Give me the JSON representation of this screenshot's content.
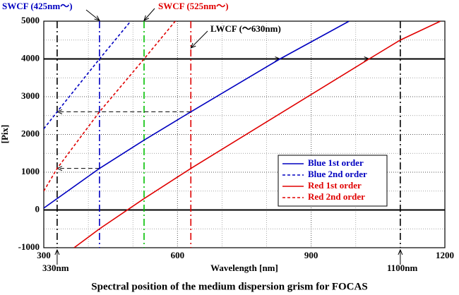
{
  "chart_data": {
    "type": "line",
    "title": "Spectral position of the medium dispersion grism for FOCAS",
    "x_label": "Wavelength [nm]",
    "y_label": "[Pix]",
    "xlim": [
      300,
      1200
    ],
    "ylim": [
      -1000,
      5000
    ],
    "xticks": [
      300,
      600,
      900,
      1200
    ],
    "yticks": [
      -1000,
      0,
      1000,
      2000,
      3000,
      4000,
      5000
    ],
    "grid": true,
    "legend": "lower right",
    "series": [
      {
        "name": "Blue 1st order",
        "color": "#0000c0",
        "linestyle": "solid",
        "x": [
          300,
          425,
          525,
          630,
          830,
          985
        ],
        "values": [
          50,
          1100,
          1850,
          2600,
          4000,
          5000
        ]
      },
      {
        "name": "Blue 2nd order",
        "color": "#0000c0",
        "linestyle": "dashed",
        "x": [
          300,
          330,
          425,
          495
        ],
        "values": [
          2150,
          2600,
          4000,
          5000
        ]
      },
      {
        "name": "Red 1st order",
        "color": "#e00000",
        "linestyle": "solid",
        "x": [
          368,
          425,
          525,
          630,
          1030,
          1100,
          1190
        ],
        "values": [
          -1000,
          -500,
          300,
          1100,
          4000,
          4500,
          5000
        ]
      },
      {
        "name": "Red 2nd order",
        "color": "#e00000",
        "linestyle": "dashed",
        "x": [
          300,
          330,
          425,
          525,
          595
        ],
        "values": [
          500,
          1100,
          2600,
          4000,
          5000
        ]
      }
    ],
    "reference_lines": [
      {
        "x": 330,
        "color": "#000000"
      },
      {
        "x": 425,
        "color": "#0000c0"
      },
      {
        "x": 525,
        "color": "#00c000"
      },
      {
        "x": 630,
        "color": "#e00000"
      },
      {
        "x": 1100,
        "color": "#000000"
      }
    ],
    "horizontal_lines": [
      0,
      4000
    ],
    "arrows": [
      {
        "y": 1100,
        "from": 425,
        "to": 330
      },
      {
        "y": 2600,
        "from": 630,
        "to": 330
      },
      {
        "y": 4000,
        "from": 525,
        "to": 830
      },
      {
        "y": 4000,
        "from": 830,
        "to": 1030
      }
    ],
    "annotations": [
      {
        "text": "SWCF (425nm～)",
        "color": "#0000c0"
      },
      {
        "text": "SWCF (525nm～)",
        "color": "#e00000"
      },
      {
        "text": "LWCF (～630nm)",
        "color": "#000000"
      },
      {
        "text": "330nm",
        "color": "#000000"
      },
      {
        "text": "1100nm",
        "color": "#000000"
      }
    ]
  }
}
